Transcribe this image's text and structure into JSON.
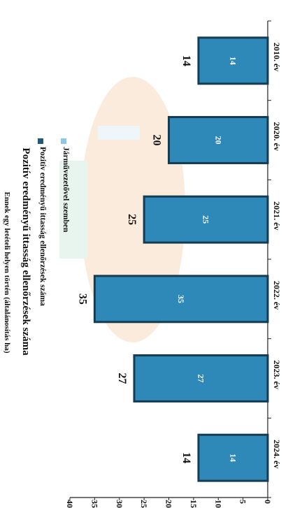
{
  "chart_data": {
    "type": "bar",
    "title": "Pozitív eredményű ittasság ellenőrzések száma",
    "categories": [
      "2010. év",
      "2020. év",
      "2021. év",
      "2022. év",
      "2023. év",
      "2024. év"
    ],
    "series": [
      {
        "name": "Pozitív eredményű ittasság ellenőrzések száma",
        "values": [
          14,
          20,
          25,
          35,
          27,
          14
        ]
      }
    ],
    "ylim": [
      0,
      40
    ],
    "yticks": [
      0,
      5,
      10,
      15,
      20,
      25,
      30,
      35,
      40
    ],
    "legend": [
      {
        "label": "Pozitív eredményű ittasság ellenőrzések száma",
        "color": "#1f5a7a"
      },
      {
        "label": "Járművezetővel szemben",
        "color": "#8ec8e8"
      }
    ],
    "legend_placement": "top",
    "orientation": "rotated-90-clockwise",
    "colors": {
      "bar": "#2e88b8",
      "bar_edge": "#143c52",
      "axis": "#222222"
    }
  },
  "header_fragment": "Ennek egy letételi helyen történ (általánosítás ha)"
}
